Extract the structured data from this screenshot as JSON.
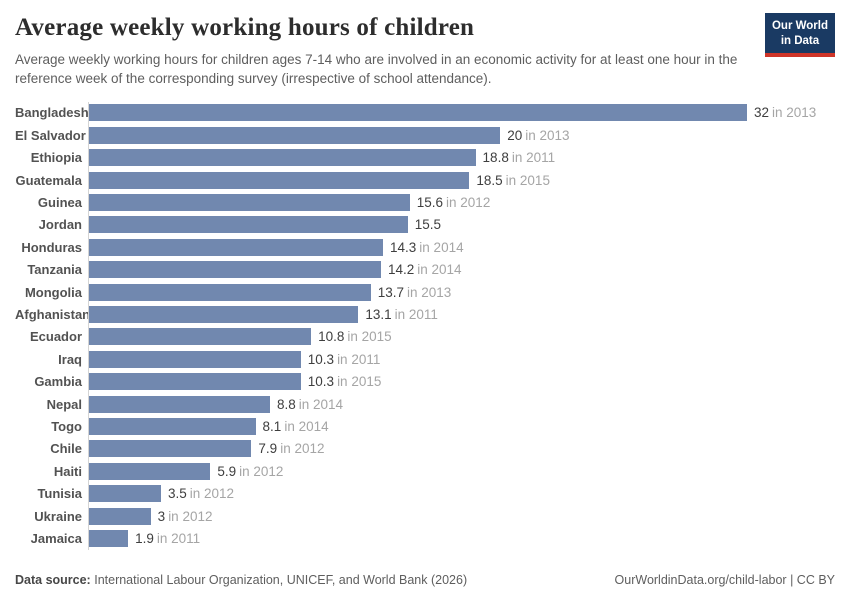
{
  "header": {
    "title": "Average weekly working hours of children",
    "subtitle": "Average weekly working hours for children ages 7-14 who are involved in an economic activity for at least one hour in the reference week of the corresponding survey (irrespective of school attendance).",
    "logo_line1": "Our World",
    "logo_line2": "in Data"
  },
  "chart_data": {
    "type": "bar",
    "orientation": "horizontal",
    "title": "Average weekly working hours of children",
    "xlabel": "",
    "ylabel": "",
    "xlim": [
      0,
      32
    ],
    "grid": false,
    "legend": false,
    "categories": [
      "Bangladesh",
      "El Salvador",
      "Ethiopia",
      "Guatemala",
      "Guinea",
      "Jordan",
      "Honduras",
      "Tanzania",
      "Mongolia",
      "Afghanistan",
      "Ecuador",
      "Iraq",
      "Gambia",
      "Nepal",
      "Togo",
      "Chile",
      "Haiti",
      "Tunisia",
      "Ukraine",
      "Jamaica"
    ],
    "values": [
      32,
      20,
      18.8,
      18.5,
      15.6,
      15.5,
      14.3,
      14.2,
      13.7,
      13.1,
      10.8,
      10.3,
      10.3,
      8.8,
      8.1,
      7.9,
      5.9,
      3.5,
      3,
      1.9
    ],
    "value_labels": [
      "32",
      "20",
      "18.8",
      "18.5",
      "15.6",
      "15.5",
      "14.3",
      "14.2",
      "13.7",
      "13.1",
      "10.8",
      "10.3",
      "10.3",
      "8.8",
      "8.1",
      "7.9",
      "5.9",
      "3.5",
      "3",
      "1.9"
    ],
    "year_labels": [
      "in 2013",
      "in 2013",
      "in 2011",
      "in 2015",
      "in 2012",
      "",
      "in 2014",
      "in 2014",
      "in 2013",
      "in 2011",
      "in 2015",
      "in 2011",
      "in 2015",
      "in 2014",
      "in 2014",
      "in 2012",
      "in 2012",
      "in 2012",
      "in 2012",
      "in 2011"
    ]
  },
  "footer": {
    "source_label": "Data source:",
    "source_text": "International Labour Organization, UNICEF, and World Bank (2026)",
    "url_text": "OurWorldinData.org/child-labor | CC BY"
  },
  "colors": {
    "bar-color": "#7188af",
    "axis-color": "#d4d4d4",
    "title-color": "#2d2d2d",
    "muted-text": "#5e5e5e",
    "label-color": "#525252",
    "value-color": "#3e3e3e",
    "year-color": "#a5a5a5",
    "logo-navy": "#1a3a63",
    "logo-red": "#cf3529"
  }
}
